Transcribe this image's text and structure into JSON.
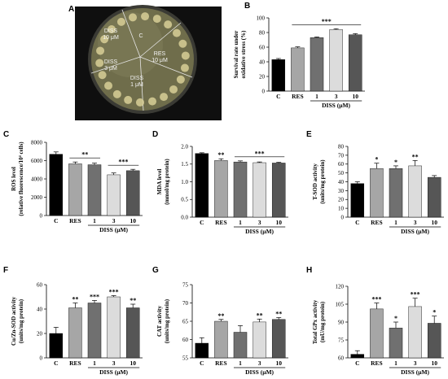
{
  "panel_a": {
    "letter": "A",
    "plate_labels": [
      {
        "lines": [
          "C"
        ],
        "name": "plate-label-c"
      },
      {
        "lines": [
          "DISS",
          "10 μM"
        ],
        "name": "plate-label-diss-10"
      },
      {
        "lines": [
          "RES",
          "10 μM"
        ],
        "name": "plate-label-res-10"
      },
      {
        "lines": [
          "DISS",
          "3 μM"
        ],
        "name": "plate-label-diss-3"
      },
      {
        "lines": [
          "DISS",
          "1 μM"
        ],
        "name": "plate-label-diss-1"
      }
    ]
  },
  "chart_data": [
    {
      "panel": "B",
      "type": "bar",
      "categories": [
        "C",
        "RES",
        "1",
        "3",
        "10"
      ],
      "values": [
        43,
        59,
        73,
        84,
        77
      ],
      "errors": [
        1.5,
        1.5,
        1,
        1.2,
        1.5
      ],
      "ylabel_lines": [
        "Survival rate under",
        "oxidative stress (%)"
      ],
      "ylim": [
        0,
        100
      ],
      "yticks": [
        0,
        20,
        40,
        60,
        80,
        100
      ],
      "group_label": "DISS (μM)",
      "significance": [
        {
          "type": "span",
          "from": 1,
          "to": 4,
          "text": "***"
        }
      ]
    },
    {
      "panel": "C",
      "type": "bar",
      "categories": [
        "C",
        "RES",
        "1",
        "3",
        "10"
      ],
      "values": [
        6700,
        5650,
        5550,
        4450,
        4900
      ],
      "errors": [
        250,
        200,
        180,
        200,
        150
      ],
      "ylabel_lines": [
        "ROS level",
        "(relative fluorescence/10⁴ cells)"
      ],
      "ylim": [
        0,
        8000
      ],
      "yticks": [
        0,
        2000,
        4000,
        6000,
        8000
      ],
      "group_label": "DISS (μM)",
      "significance": [
        {
          "type": "span",
          "from": 1,
          "to": 2,
          "text": "**"
        },
        {
          "type": "span",
          "from": 3,
          "to": 4,
          "text": "***"
        }
      ]
    },
    {
      "panel": "D",
      "type": "bar",
      "categories": [
        "C",
        "RES",
        "1",
        "3",
        "10"
      ],
      "values": [
        1.8,
        1.6,
        1.56,
        1.54,
        1.53
      ],
      "errors": [
        0.02,
        0.05,
        0.03,
        0.02,
        0.02
      ],
      "ylabel_lines": [
        "MDA level",
        "(mmol/mg protein)"
      ],
      "ylim": [
        0,
        2.0
      ],
      "yticks": [
        0,
        0.5,
        1.0,
        1.5,
        2.0
      ],
      "ytick_labels": [
        "0.0",
        "0.5",
        "1.0",
        "1.5",
        "2.0"
      ],
      "group_label": "DISS (μM)",
      "significance": [
        {
          "type": "bar",
          "index": 1,
          "text": "**"
        },
        {
          "type": "span",
          "from": 2,
          "to": 4,
          "text": "***"
        }
      ]
    },
    {
      "panel": "E",
      "type": "bar",
      "categories": [
        "C",
        "RES",
        "1",
        "3",
        "10"
      ],
      "values": [
        38,
        55,
        55,
        58,
        45
      ],
      "errors": [
        2,
        6,
        3,
        6,
        2
      ],
      "ylabel_lines": [
        "T-SOD activity",
        "(units/mg protein)"
      ],
      "ylim": [
        0,
        80
      ],
      "yticks": [
        0,
        10,
        20,
        30,
        40,
        50,
        60,
        70,
        80
      ],
      "group_label": "DISS (μM)",
      "significance": [
        {
          "type": "bar",
          "index": 1,
          "text": "*"
        },
        {
          "type": "bar",
          "index": 2,
          "text": "*"
        },
        {
          "type": "bar",
          "index": 3,
          "text": "**"
        }
      ]
    },
    {
      "panel": "F",
      "type": "bar",
      "categories": [
        "C",
        "RES",
        "1",
        "3",
        "10"
      ],
      "values": [
        20,
        41,
        45,
        50,
        41
      ],
      "errors": [
        5,
        4,
        2,
        1,
        3
      ],
      "ylabel_lines": [
        "Cu/Zn-SOD activity",
        "(units/mg protein)"
      ],
      "ylim": [
        0,
        60
      ],
      "yticks": [
        0,
        20,
        40,
        60
      ],
      "group_label": "DISS (μM)",
      "significance": [
        {
          "type": "bar",
          "index": 1,
          "text": "**"
        },
        {
          "type": "bar",
          "index": 2,
          "text": "***"
        },
        {
          "type": "bar",
          "index": 3,
          "text": "***"
        },
        {
          "type": "bar",
          "index": 4,
          "text": "**"
        }
      ]
    },
    {
      "panel": "G",
      "type": "bar",
      "categories": [
        "C",
        "RES",
        "1",
        "3",
        "10"
      ],
      "values": [
        59,
        65,
        62,
        64.8,
        65.5
      ],
      "errors": [
        1.5,
        0.5,
        1.8,
        0.8,
        0.5
      ],
      "ylabel_lines": [
        "CAT activity",
        "(units/mg protein)"
      ],
      "ylim": [
        55,
        75
      ],
      "yticks": [
        55,
        60,
        65,
        70,
        75
      ],
      "group_label": "DISS (μM)",
      "significance": [
        {
          "type": "bar",
          "index": 1,
          "text": "**"
        },
        {
          "type": "bar",
          "index": 3,
          "text": "**"
        },
        {
          "type": "bar",
          "index": 4,
          "text": "**"
        }
      ]
    },
    {
      "panel": "H",
      "type": "bar",
      "categories": [
        "C",
        "RES",
        "1",
        "3",
        "10"
      ],
      "values": [
        63,
        101,
        85,
        103,
        89
      ],
      "errors": [
        3,
        5,
        5,
        7,
        6
      ],
      "ylabel_lines": [
        "Total GPx activity",
        "(mU/mg protein)"
      ],
      "ylim": [
        60,
        120
      ],
      "yticks": [
        60,
        75,
        90,
        105,
        120
      ],
      "group_label": "DISS (μM)",
      "significance": [
        {
          "type": "bar",
          "index": 1,
          "text": "***"
        },
        {
          "type": "bar",
          "index": 2,
          "text": "*"
        },
        {
          "type": "bar",
          "index": 3,
          "text": "***"
        },
        {
          "type": "bar",
          "index": 4,
          "text": "*"
        }
      ]
    }
  ],
  "colors": {
    "bars": [
      "#000000",
      "#a6a6a6",
      "#707070",
      "#dcdcdc",
      "#565656"
    ],
    "plate_rim": "#2e2e2e",
    "plate_agar": "#6e6c4a",
    "colony": "#d8cf96",
    "background_dark": "#101010"
  }
}
